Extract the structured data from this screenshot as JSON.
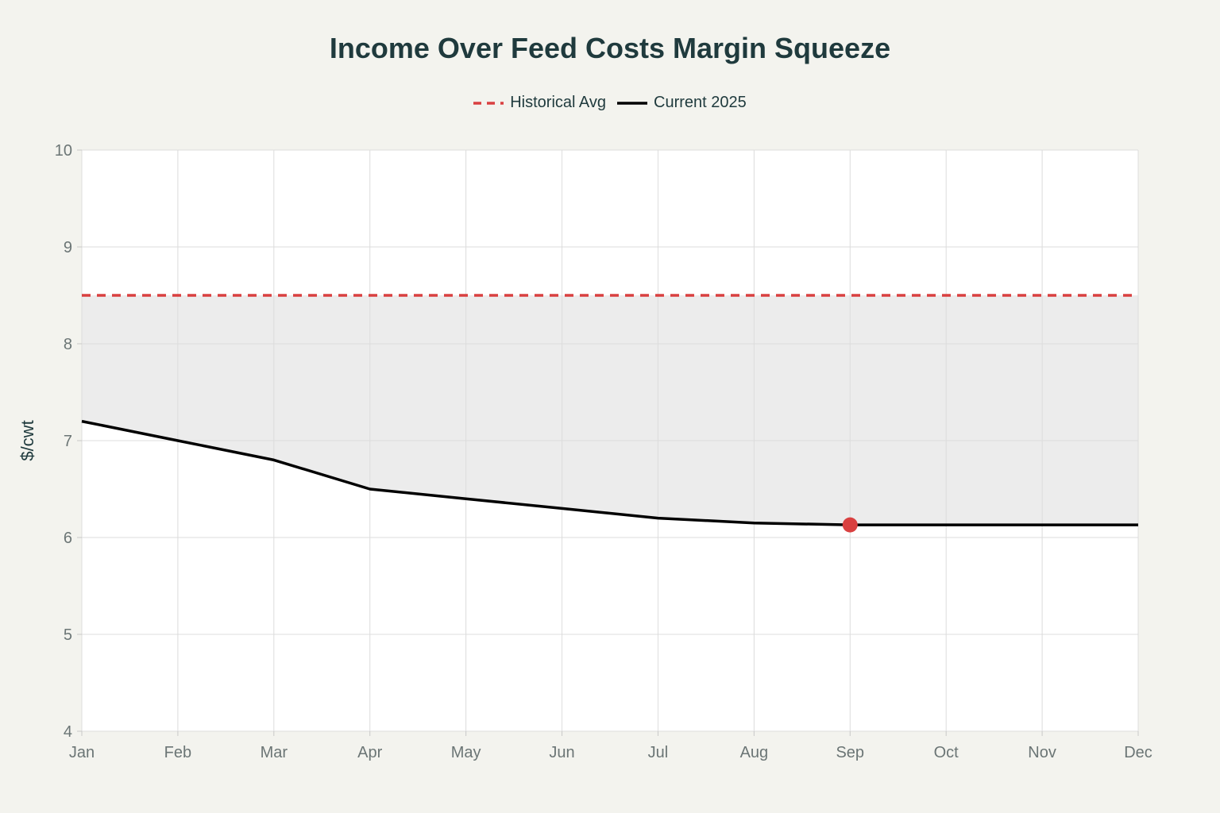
{
  "chart_data": {
    "type": "line",
    "title": "Income Over Feed Costs Margin Squeeze",
    "xlabel": "",
    "ylabel": "$/cwt",
    "categories": [
      "Jan",
      "Feb",
      "Mar",
      "Apr",
      "May",
      "Jun",
      "Jul",
      "Aug",
      "Sep",
      "Oct",
      "Nov",
      "Dec"
    ],
    "ylim": [
      4,
      10
    ],
    "yticks": [
      4,
      5,
      6,
      7,
      8,
      9,
      10
    ],
    "grid": true,
    "legend_position": "top-center",
    "series": [
      {
        "name": "Historical Avg",
        "style": "dashed",
        "color": "#d94040",
        "values": [
          8.5,
          8.5,
          8.5,
          8.5,
          8.5,
          8.5,
          8.5,
          8.5,
          8.5,
          8.5,
          8.5,
          8.5
        ]
      },
      {
        "name": "Current 2025",
        "style": "solid",
        "color": "#000000",
        "values": [
          7.2,
          7.0,
          6.8,
          6.5,
          6.4,
          6.3,
          6.2,
          6.15,
          6.13,
          6.13,
          6.13,
          6.13
        ]
      }
    ],
    "highlight_point": {
      "category": "Sep",
      "value": 6.13,
      "color": "#d94040"
    },
    "shaded_gap": {
      "between": [
        "Historical Avg",
        "Current 2025"
      ],
      "color": "#ececec"
    }
  }
}
